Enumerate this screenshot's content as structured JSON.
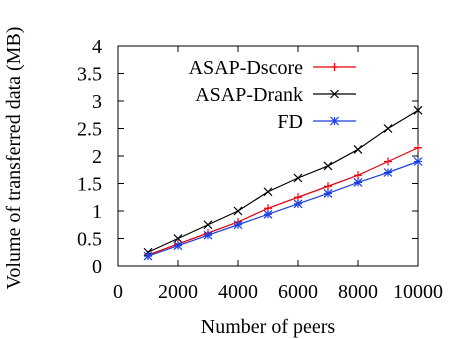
{
  "chart_data": {
    "type": "line",
    "title": "",
    "xlabel": "Number of peers",
    "ylabel": "Volume of transferred data (MB)",
    "xlim": [
      0,
      10000
    ],
    "ylim": [
      0,
      4
    ],
    "x_ticks": [
      "0",
      "2000",
      "4000",
      "6000",
      "8000",
      "10000"
    ],
    "y_ticks": [
      "0",
      "0.5",
      "1",
      "1.5",
      "2",
      "2.5",
      "3",
      "3.5",
      "4"
    ],
    "grid": false,
    "legend_position": "top-right",
    "x": [
      1000,
      2000,
      3000,
      4000,
      5000,
      6000,
      7000,
      8000,
      9000,
      10000
    ],
    "series": [
      {
        "name": "ASAP-Dscore",
        "color": "#e8000b",
        "marker": "plus",
        "values": [
          0.2,
          0.4,
          0.6,
          0.8,
          1.05,
          1.25,
          1.45,
          1.65,
          1.9,
          2.15
        ]
      },
      {
        "name": "ASAP-Drank",
        "color": "#000000",
        "marker": "cross",
        "values": [
          0.25,
          0.5,
          0.75,
          1.0,
          1.35,
          1.6,
          1.82,
          2.12,
          2.5,
          2.83
        ]
      },
      {
        "name": "FD",
        "color": "#1c3fe0",
        "marker": "star",
        "values": [
          0.18,
          0.37,
          0.56,
          0.75,
          0.94,
          1.13,
          1.32,
          1.52,
          1.7,
          1.9
        ]
      }
    ]
  }
}
